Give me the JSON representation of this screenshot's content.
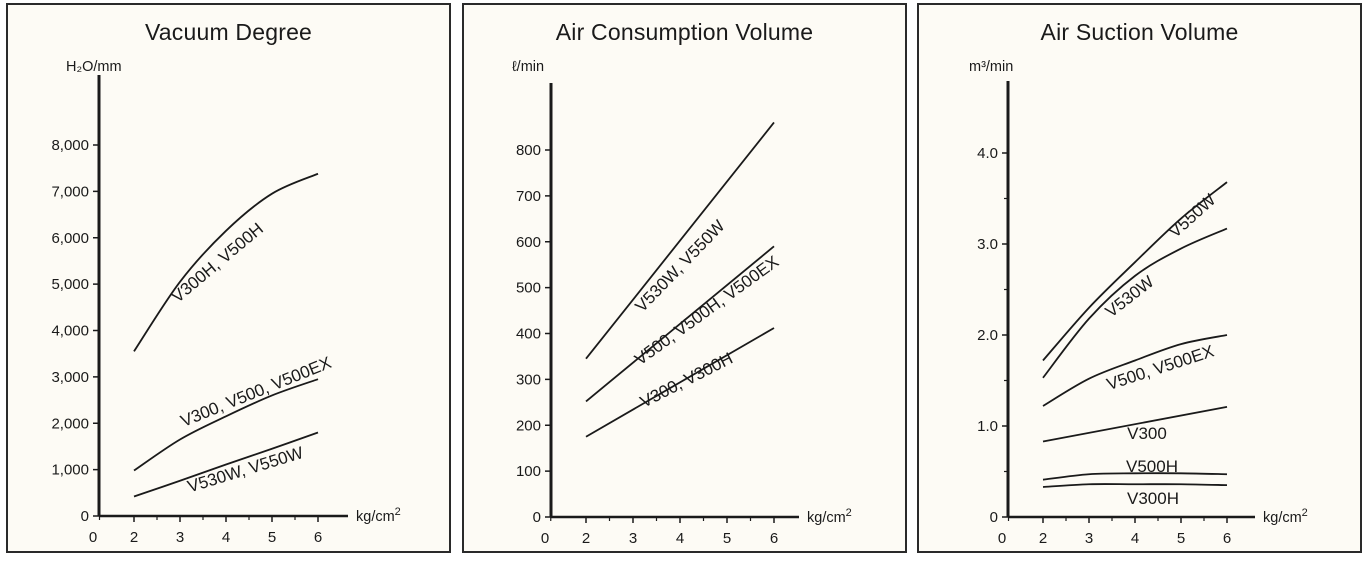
{
  "chart_data": [
    {
      "type": "line",
      "title": "Vacuum Degree",
      "ylabel": "H₂O/mm",
      "xlabel_unit": "kg/cm",
      "xlabel_sup": "2",
      "xlim": [
        0,
        6
      ],
      "ylim": [
        0,
        8000
      ],
      "xticks": [
        "0",
        "2",
        "3",
        "4",
        "5",
        "6"
      ],
      "yticks": [
        {
          "v": 0,
          "label": "0"
        },
        {
          "v": 1000,
          "label": "1,000"
        },
        {
          "v": 2000,
          "label": "2,000"
        },
        {
          "v": 3000,
          "label": "3,000"
        },
        {
          "v": 4000,
          "label": "4,000"
        },
        {
          "v": 5000,
          "label": "5,000"
        },
        {
          "v": 6000,
          "label": "6,000"
        },
        {
          "v": 7000,
          "label": "7,000"
        },
        {
          "v": 8000,
          "label": "8,000"
        }
      ],
      "series": [
        {
          "name": "V300H, V500H",
          "x": [
            2,
            3,
            4,
            5,
            6
          ],
          "y": [
            3550,
            5050,
            6150,
            6950,
            7380
          ]
        },
        {
          "name": "V300, V500, V500EX",
          "x": [
            2,
            3,
            4,
            5,
            6
          ],
          "y": [
            980,
            1650,
            2150,
            2600,
            2950
          ]
        },
        {
          "name": "V530W, V550W",
          "x": [
            2,
            3,
            4,
            5,
            6
          ],
          "y": [
            420,
            760,
            1110,
            1450,
            1800
          ]
        }
      ]
    },
    {
      "type": "line",
      "title": "Air Consumption Volume",
      "ylabel": "ℓ/min",
      "xlabel_unit": "kg/cm",
      "xlabel_sup": "2",
      "xlim": [
        0,
        6
      ],
      "ylim": [
        0,
        800
      ],
      "xticks": [
        "0",
        "2",
        "3",
        "4",
        "5",
        "6"
      ],
      "yticks": [
        {
          "v": 0,
          "label": "0"
        },
        {
          "v": 100,
          "label": "100"
        },
        {
          "v": 200,
          "label": "200"
        },
        {
          "v": 300,
          "label": "300"
        },
        {
          "v": 400,
          "label": "400"
        },
        {
          "v": 500,
          "label": "500"
        },
        {
          "v": 600,
          "label": "600"
        },
        {
          "v": 700,
          "label": "700"
        },
        {
          "v": 800,
          "label": "800"
        }
      ],
      "series": [
        {
          "name": "V530W, V550W",
          "x": [
            2,
            6
          ],
          "y": [
            345,
            860
          ]
        },
        {
          "name": "V500, V500H, V500EX",
          "x": [
            2,
            6
          ],
          "y": [
            252,
            590
          ]
        },
        {
          "name": "V300, V300H",
          "x": [
            2,
            6
          ],
          "y": [
            175,
            412
          ]
        }
      ]
    },
    {
      "type": "line",
      "title": "Air Suction Volume",
      "ylabel": "m³/min",
      "xlabel_unit": "kg/cm",
      "xlabel_sup": "2",
      "xlim": [
        0,
        6
      ],
      "ylim": [
        0,
        4.0
      ],
      "xticks": [
        "0",
        "2",
        "3",
        "4",
        "5",
        "6"
      ],
      "yticks": [
        {
          "v": 0,
          "label": "0"
        },
        {
          "v": 1.0,
          "label": "1.0"
        },
        {
          "v": 2.0,
          "label": "2.0"
        },
        {
          "v": 3.0,
          "label": "3.0"
        },
        {
          "v": 4.0,
          "label": "4.0"
        }
      ],
      "minor_yticks": [
        0.5,
        1.5,
        2.5,
        3.5
      ],
      "series": [
        {
          "name": "V550W",
          "x": [
            2,
            3,
            4,
            5,
            6
          ],
          "y": [
            1.72,
            2.3,
            2.8,
            3.28,
            3.68
          ]
        },
        {
          "name": "V530W",
          "x": [
            2,
            3,
            4,
            5,
            6
          ],
          "y": [
            1.53,
            2.18,
            2.65,
            2.95,
            3.17
          ]
        },
        {
          "name": "V500, V500EX",
          "x": [
            2,
            3,
            4,
            5,
            6
          ],
          "y": [
            1.22,
            1.52,
            1.72,
            1.9,
            2.0
          ]
        },
        {
          "name": "V300",
          "x": [
            2,
            6
          ],
          "y": [
            0.83,
            1.21
          ]
        },
        {
          "name": "V500H",
          "x": [
            2,
            3,
            4,
            5,
            6
          ],
          "y": [
            0.41,
            0.47,
            0.48,
            0.48,
            0.47
          ]
        },
        {
          "name": "V300H",
          "x": [
            2,
            3,
            4,
            5,
            6
          ],
          "y": [
            0.33,
            0.36,
            0.36,
            0.36,
            0.35
          ]
        }
      ]
    }
  ]
}
